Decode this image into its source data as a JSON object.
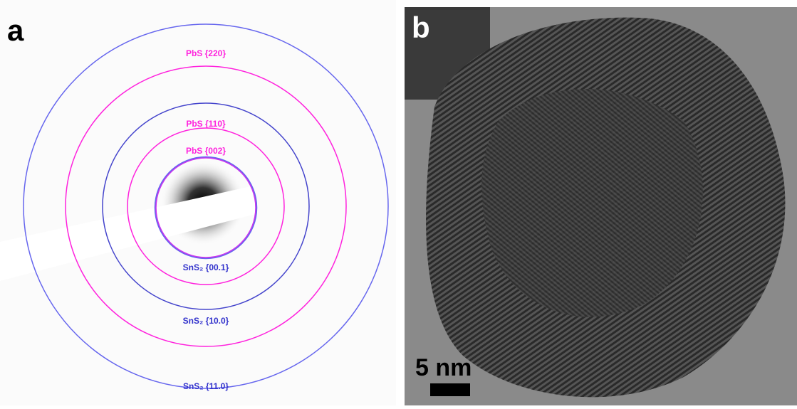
{
  "panel_a": {
    "label": "a",
    "rings": [
      "PbS {220}",
      "PbS {110}",
      "PbS {002}",
      "SnS₂ {00.1}",
      "SnS₂ {10.0}",
      "SnS₂ {11.0}"
    ]
  },
  "panel_b": {
    "label": "b",
    "scale_bar": "5 nm"
  }
}
